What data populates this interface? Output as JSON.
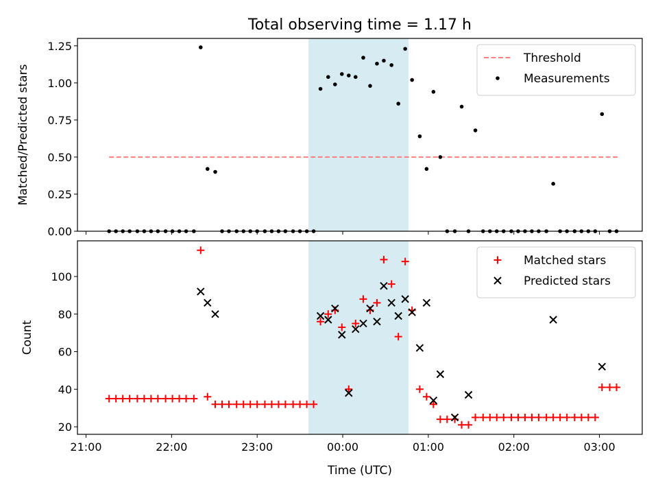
{
  "title": "Total observing time = 1.17 h",
  "shared_x": {
    "label": "Time (UTC)",
    "unit": "hours since 21:00 UTC",
    "range": [
      -0.1,
      6.5
    ],
    "ticks": [
      0,
      1,
      2,
      3,
      4,
      5,
      6
    ],
    "tick_labels": [
      "21:00",
      "22:00",
      "23:00",
      "00:00",
      "01:00",
      "02:00",
      "03:00"
    ]
  },
  "highlight_span": {
    "x": [
      2.6,
      3.77
    ],
    "color": "#add8e6"
  },
  "chart_data": [
    {
      "type": "scatter",
      "ylabel": "Matched/Predicted stars",
      "ylim": [
        0,
        1.3
      ],
      "yticks": [
        0,
        0.25,
        0.5,
        0.75,
        1.0,
        1.25
      ],
      "ytick_labels": [
        "0.00",
        "0.25",
        "0.50",
        "0.75",
        "1.00",
        "1.25"
      ],
      "legend_position": "top-right",
      "series": [
        {
          "name": "Threshold",
          "kind": "dashed-line",
          "color": "#ff7f7f",
          "x": [
            0.27,
            6.22
          ],
          "y": [
            0.5,
            0.5
          ]
        },
        {
          "name": "Measurements",
          "kind": "dots",
          "color": "#000000",
          "x": [
            0.27,
            0.35,
            0.43,
            0.51,
            0.6,
            0.68,
            0.76,
            0.84,
            0.93,
            1.01,
            1.09,
            1.17,
            1.26,
            1.34,
            1.42,
            1.51,
            1.59,
            1.67,
            1.76,
            1.84,
            1.92,
            2.0,
            2.09,
            2.17,
            2.25,
            2.33,
            2.42,
            2.5,
            2.58,
            2.66,
            2.74,
            2.83,
            2.91,
            2.99,
            3.07,
            3.15,
            3.24,
            3.32,
            3.4,
            3.48,
            3.57,
            3.65,
            3.73,
            3.81,
            3.9,
            3.98,
            4.06,
            4.14,
            4.22,
            4.31,
            4.39,
            4.47,
            4.55,
            4.64,
            4.72,
            4.8,
            4.88,
            4.97,
            5.05,
            5.13,
            5.21,
            5.29,
            5.38,
            5.46,
            5.54,
            5.62,
            5.71,
            5.79,
            5.87,
            5.95,
            6.03,
            6.12,
            6.2
          ],
          "y": [
            0,
            0,
            0,
            0,
            0,
            0,
            0,
            0,
            0,
            0,
            0,
            0,
            0,
            1.24,
            0.42,
            0.4,
            0,
            0,
            0,
            0,
            0,
            0,
            0,
            0,
            0,
            0,
            0,
            0,
            0,
            0,
            0.96,
            1.04,
            0.99,
            1.06,
            1.05,
            1.04,
            1.17,
            0.98,
            1.13,
            1.15,
            1.12,
            0.86,
            1.23,
            1.02,
            0.64,
            0.42,
            0.94,
            0.5,
            0,
            0,
            0.84,
            0,
            0.68,
            0,
            0,
            0,
            0,
            0,
            0,
            0,
            0,
            0,
            0,
            0.32,
            0,
            0,
            0,
            0,
            0,
            0,
            0.79,
            0,
            0
          ]
        }
      ]
    },
    {
      "type": "scatter",
      "xlabel": "Time (UTC)",
      "ylabel": "Count",
      "ylim": [
        16,
        119
      ],
      "yticks": [
        20,
        40,
        60,
        80,
        100
      ],
      "ytick_labels": [
        "20",
        "40",
        "60",
        "80",
        "100"
      ],
      "legend_position": "top-right",
      "series": [
        {
          "name": "Matched stars",
          "marker": "plus",
          "color": "#ff0000",
          "x": [
            0.27,
            0.35,
            0.43,
            0.51,
            0.6,
            0.68,
            0.76,
            0.84,
            0.93,
            1.01,
            1.09,
            1.17,
            1.26,
            1.34,
            1.42,
            1.51,
            1.59,
            1.67,
            1.76,
            1.84,
            1.92,
            2.0,
            2.09,
            2.17,
            2.25,
            2.33,
            2.42,
            2.5,
            2.58,
            2.66,
            2.74,
            2.83,
            2.91,
            2.99,
            3.07,
            3.15,
            3.24,
            3.32,
            3.4,
            3.48,
            3.57,
            3.65,
            3.73,
            3.81,
            3.9,
            3.98,
            4.06,
            4.14,
            4.22,
            4.31,
            4.39,
            4.47,
            4.55,
            4.64,
            4.72,
            4.8,
            4.88,
            4.97,
            5.05,
            5.13,
            5.21,
            5.29,
            5.38,
            5.46,
            5.54,
            5.62,
            5.71,
            5.79,
            5.87,
            5.95,
            6.03,
            6.12,
            6.2
          ],
          "y": [
            35,
            35,
            35,
            35,
            35,
            35,
            35,
            35,
            35,
            35,
            35,
            35,
            35,
            114,
            36,
            32,
            32,
            32,
            32,
            32,
            32,
            32,
            32,
            32,
            32,
            32,
            32,
            32,
            32,
            32,
            76,
            80,
            82,
            73,
            40,
            75,
            88,
            82,
            86,
            109,
            96,
            68,
            108,
            82,
            40,
            36,
            32,
            24,
            24,
            24,
            21,
            21,
            25,
            25,
            25,
            25,
            25,
            25,
            25,
            25,
            25,
            25,
            25,
            25,
            25,
            25,
            25,
            25,
            25,
            25,
            41,
            41,
            41
          ]
        },
        {
          "name": "Predicted stars",
          "marker": "x",
          "color": "#000000",
          "x": [
            1.34,
            1.42,
            1.51,
            2.74,
            2.83,
            2.91,
            2.99,
            3.07,
            3.15,
            3.24,
            3.32,
            3.4,
            3.48,
            3.57,
            3.65,
            3.73,
            3.81,
            3.9,
            3.98,
            4.06,
            4.14,
            4.31,
            4.47,
            5.46,
            6.03
          ],
          "y": [
            92,
            86,
            80,
            79,
            77,
            83,
            69,
            38,
            72,
            75,
            83,
            76,
            95,
            86,
            79,
            88,
            81,
            62,
            86,
            34,
            48,
            25,
            37,
            77,
            52
          ]
        }
      ]
    }
  ]
}
